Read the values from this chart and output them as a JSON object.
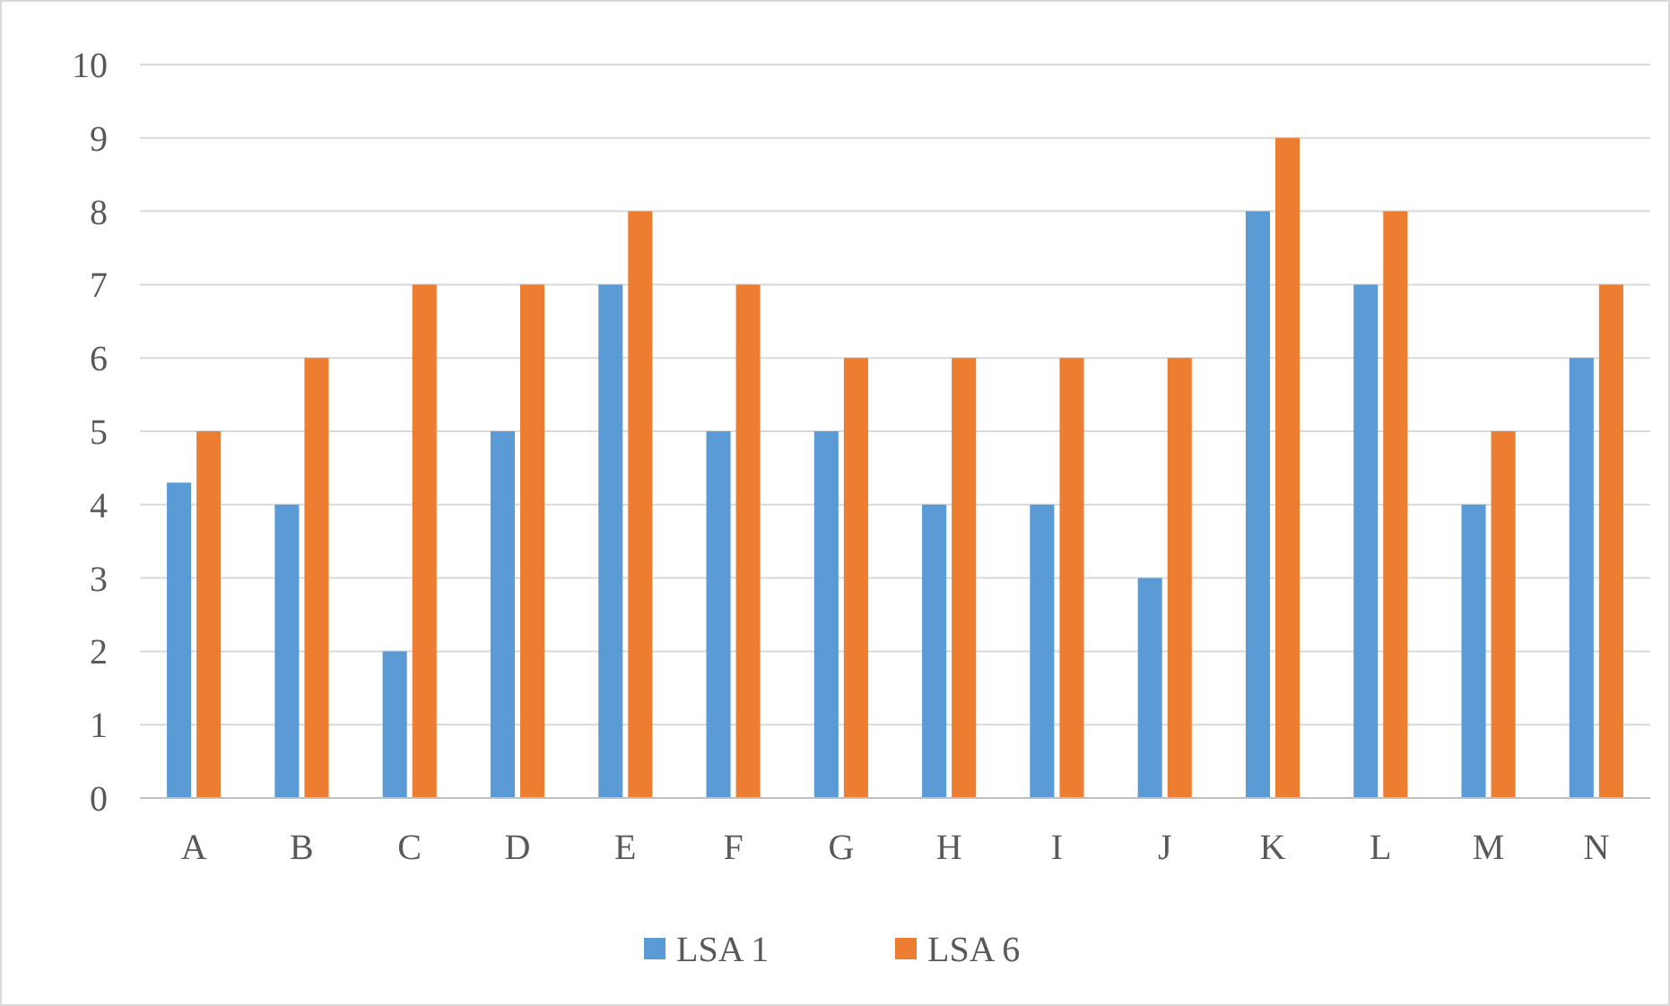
{
  "chart_data": {
    "type": "bar",
    "categories": [
      "A",
      "B",
      "C",
      "D",
      "E",
      "F",
      "G",
      "H",
      "I",
      "J",
      "K",
      "L",
      "M",
      "N"
    ],
    "series": [
      {
        "name": "LSA 1",
        "color": "#5b9bd5",
        "values": [
          4.3,
          4,
          2,
          5,
          7,
          5,
          5,
          4,
          4,
          3,
          8,
          7,
          4,
          6
        ]
      },
      {
        "name": "LSA 6",
        "color": "#ed7d31",
        "values": [
          5,
          6,
          7,
          7,
          8,
          7,
          6,
          6,
          6,
          6,
          9,
          8,
          5,
          7
        ]
      }
    ],
    "ylim": [
      0,
      10
    ],
    "yticks": [
      0,
      1,
      2,
      3,
      4,
      5,
      6,
      7,
      8,
      9,
      10
    ],
    "grid": "y",
    "legend": "bottom"
  }
}
